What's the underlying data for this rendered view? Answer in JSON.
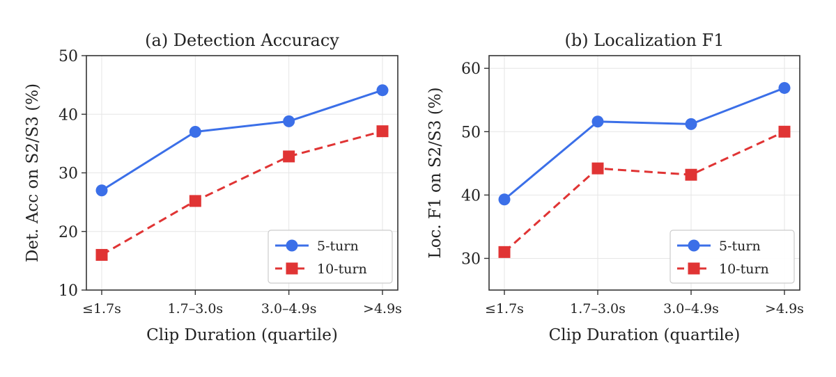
{
  "chart_data": [
    {
      "type": "line",
      "title": "(a) Detection Accuracy",
      "xlabel": "Clip Duration (quartile)",
      "ylabel": "Det. Acc on S2/S3 (%)",
      "categories": [
        "≤1.7s",
        "1.7–3.0s",
        "3.0–4.9s",
        ">4.9s"
      ],
      "ylim": [
        10,
        50
      ],
      "yticks": [
        10,
        20,
        30,
        40,
        50
      ],
      "grid": true,
      "legend_position": "lower-right",
      "series": [
        {
          "name": "5-turn",
          "values": [
            27.0,
            37.0,
            38.8,
            44.1
          ],
          "color": "#3b6fe8",
          "marker": "circle",
          "dash": "solid"
        },
        {
          "name": "10-turn",
          "values": [
            16.0,
            25.2,
            32.8,
            37.1
          ],
          "color": "#e03434",
          "marker": "square",
          "dash": "dashed"
        }
      ]
    },
    {
      "type": "line",
      "title": "(b) Localization F1",
      "xlabel": "Clip Duration (quartile)",
      "ylabel": "Loc. F1 on S2/S3 (%)",
      "categories": [
        "≤1.7s",
        "1.7–3.0s",
        "3.0–4.9s",
        ">4.9s"
      ],
      "ylim": [
        25,
        62
      ],
      "yticks": [
        30,
        40,
        50,
        60
      ],
      "grid": true,
      "legend_position": "lower-right",
      "series": [
        {
          "name": "5-turn",
          "values": [
            39.3,
            51.6,
            51.2,
            56.9
          ],
          "color": "#3b6fe8",
          "marker": "circle",
          "dash": "solid"
        },
        {
          "name": "10-turn",
          "values": [
            31.0,
            44.2,
            43.2,
            50.0
          ],
          "color": "#e03434",
          "marker": "square",
          "dash": "dashed"
        }
      ]
    }
  ]
}
